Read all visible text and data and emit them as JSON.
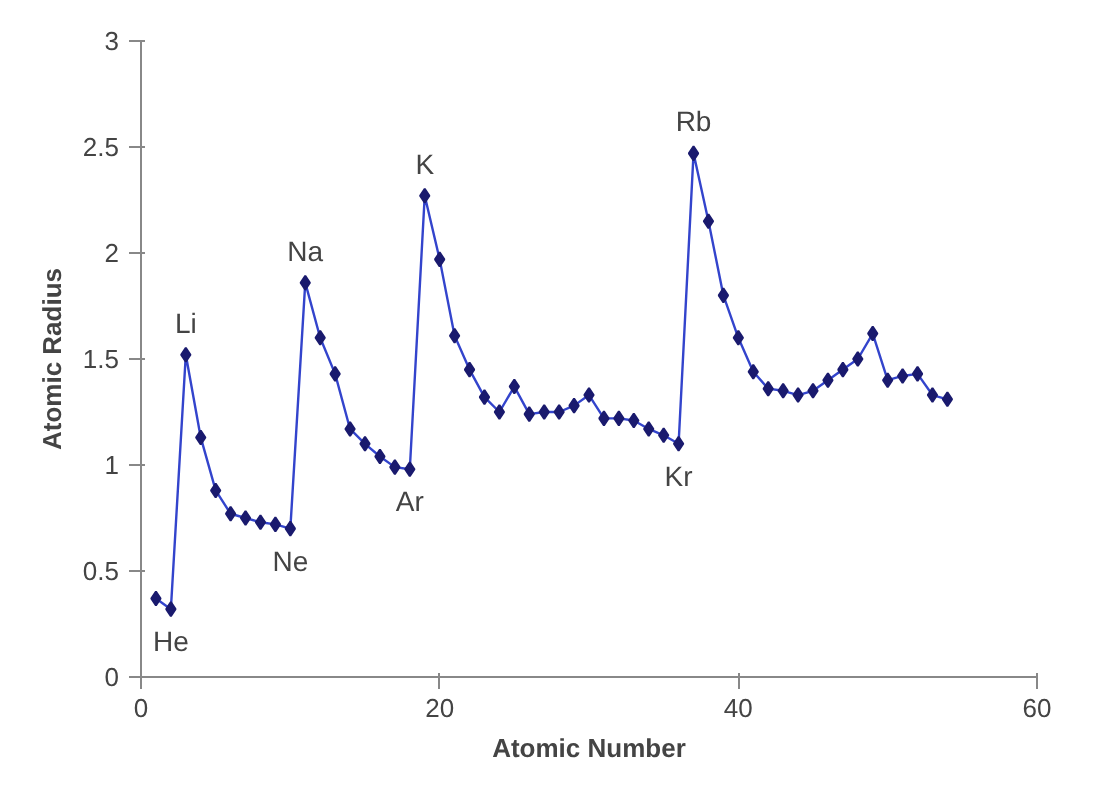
{
  "chart_data": {
    "type": "line",
    "xlabel": "Atomic Number",
    "ylabel": "Atomic Radius",
    "x": [
      1,
      2,
      3,
      4,
      5,
      6,
      7,
      8,
      9,
      10,
      11,
      12,
      13,
      14,
      15,
      16,
      17,
      18,
      19,
      20,
      21,
      22,
      23,
      24,
      25,
      26,
      27,
      28,
      29,
      30,
      31,
      32,
      33,
      34,
      35,
      36,
      37,
      38,
      39,
      40,
      41,
      42,
      43,
      44,
      45,
      46,
      47,
      48,
      49,
      50,
      51,
      52,
      53,
      54
    ],
    "series": [
      {
        "color": "#1a1a6e",
        "values": [
          0.37,
          0.32,
          1.52,
          1.13,
          0.88,
          0.77,
          0.75,
          0.73,
          0.72,
          0.7,
          1.86,
          1.6,
          1.43,
          1.17,
          1.1,
          1.04,
          0.99,
          0.98,
          2.27,
          1.97,
          1.61,
          1.45,
          1.32,
          1.25,
          1.37,
          1.24,
          1.25,
          1.25,
          1.28,
          1.33,
          1.22,
          1.22,
          1.21,
          1.17,
          1.14,
          1.1,
          2.47,
          2.15,
          1.8,
          1.6,
          1.44,
          1.36,
          1.35,
          1.33,
          1.35,
          1.4,
          1.45,
          1.5,
          1.62,
          1.4,
          1.42,
          1.43,
          1.33,
          1.31
        ]
      }
    ],
    "annotations": [
      {
        "text": "He",
        "x": 2,
        "y": 0.32
      },
      {
        "text": "Li",
        "x": 3,
        "y": 1.52
      },
      {
        "text": "Ne",
        "x": 10,
        "y": 0.7
      },
      {
        "text": "Na",
        "x": 11,
        "y": 1.86
      },
      {
        "text": "Ar",
        "x": 18,
        "y": 0.98
      },
      {
        "text": "K",
        "x": 19,
        "y": 2.27
      },
      {
        "text": "Kr",
        "x": 36,
        "y": 1.1
      },
      {
        "text": "Rb",
        "x": 37,
        "y": 2.47
      }
    ],
    "xlim": [
      0,
      60
    ],
    "xticks": [
      0,
      20,
      40,
      60
    ],
    "ylim": [
      0,
      3
    ],
    "yticks": [
      0,
      0.5,
      1,
      1.5,
      2,
      2.5,
      3
    ],
    "marker": "diamond",
    "line_style": "solid",
    "grid": false
  }
}
